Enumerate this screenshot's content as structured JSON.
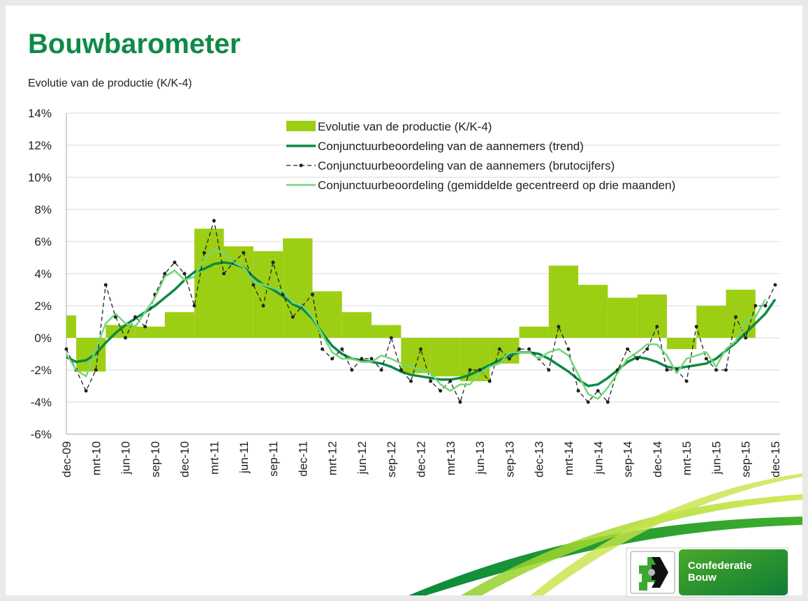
{
  "chart_data": {
    "type": "combo",
    "title": "Bouwbarometer",
    "subtitle": "Evolutie van de productie (K/K-4)",
    "categories": [
      "dec-09",
      null,
      null,
      "mrt-10",
      null,
      null,
      "jun-10",
      null,
      null,
      "sep-10",
      null,
      null,
      "dec-10",
      null,
      null,
      "mrt-11",
      null,
      null,
      "jun-11",
      null,
      null,
      "sep-11",
      null,
      null,
      "dec-11",
      null,
      null,
      "mrt-12",
      null,
      null,
      "jun-12",
      null,
      null,
      "sep-12",
      null,
      null,
      "dec-12",
      null,
      null,
      "mrt-13",
      null,
      null,
      "jun-13",
      null,
      null,
      "sep-13",
      null,
      null,
      "dec-13",
      null,
      null,
      "mrt-14",
      null,
      null,
      "jun-14",
      null,
      null,
      "sep-14",
      null,
      null,
      "dec-14",
      null,
      null,
      "mrt-15",
      null,
      null,
      "jun-15",
      null,
      null,
      "sep-15",
      null,
      null,
      "dec-15"
    ],
    "ylim": [
      -6,
      14
    ],
    "yticks": [
      {
        "value": -6,
        "label": "-6%"
      },
      {
        "value": -4,
        "label": "-4%"
      },
      {
        "value": -2,
        "label": "-2%"
      },
      {
        "value": 0,
        "label": "0%"
      },
      {
        "value": 2,
        "label": "2%"
      },
      {
        "value": 4,
        "label": "4%"
      },
      {
        "value": 6,
        "label": "6%"
      },
      {
        "value": 8,
        "label": "8%"
      },
      {
        "value": 10,
        "label": "10%"
      },
      {
        "value": 12,
        "label": "12%"
      },
      {
        "value": 14,
        "label": "14%"
      }
    ],
    "grid": true,
    "legend": "top",
    "series": [
      {
        "name": "Evolutie van de productie (K/K-4)",
        "type": "bar",
        "color": "#9ccf13",
        "values": [
          1.4,
          null,
          null,
          -2.1,
          null,
          null,
          0.8,
          null,
          null,
          0.7,
          null,
          null,
          1.6,
          null,
          null,
          6.8,
          null,
          null,
          5.7,
          null,
          null,
          5.4,
          null,
          null,
          6.2,
          null,
          null,
          2.9,
          null,
          null,
          1.6,
          null,
          null,
          0.8,
          null,
          null,
          -2.2,
          null,
          null,
          -2.4,
          null,
          null,
          -2.7,
          null,
          null,
          -1.6,
          null,
          null,
          0.7,
          null,
          null,
          4.5,
          null,
          null,
          3.3,
          null,
          null,
          2.5,
          null,
          null,
          2.7,
          null,
          null,
          -0.7,
          null,
          null,
          2.0,
          null,
          null,
          3.0,
          null,
          null,
          null
        ]
      },
      {
        "name": "Conjunctuurbeoordeling van de aannemers (trend)",
        "type": "line",
        "color": "#0c8a45",
        "width": 3.5,
        "values": [
          -1.2,
          -1.5,
          -1.4,
          -1.0,
          -0.3,
          0.3,
          0.8,
          1.2,
          1.6,
          2.0,
          2.5,
          3.0,
          3.6,
          4.1,
          4.3,
          4.6,
          4.7,
          4.6,
          4.4,
          3.8,
          3.3,
          3.0,
          2.6,
          2.1,
          1.8,
          1.2,
          0.3,
          -0.5,
          -1.0,
          -1.3,
          -1.4,
          -1.5,
          -1.6,
          -1.8,
          -2.1,
          -2.3,
          -2.4,
          -2.5,
          -2.6,
          -2.6,
          -2.5,
          -2.3,
          -2.0,
          -1.7,
          -1.4,
          -1.1,
          -0.9,
          -0.9,
          -1.0,
          -1.3,
          -1.7,
          -2.1,
          -2.6,
          -3.0,
          -2.9,
          -2.5,
          -2.0,
          -1.5,
          -1.2,
          -1.3,
          -1.5,
          -1.8,
          -1.9,
          -1.8,
          -1.7,
          -1.6,
          -1.3,
          -0.8,
          -0.3,
          0.3,
          0.9,
          1.5,
          2.4
        ]
      },
      {
        "name": "Conjunctuurbeoordeling van de aannemers (brutocijfers)",
        "type": "line",
        "color": "#222222",
        "width": 1.3,
        "dashed": true,
        "markers": true,
        "values": [
          -0.7,
          -2.0,
          -3.3,
          -2.0,
          3.3,
          1.3,
          0.0,
          1.3,
          0.7,
          2.7,
          4.0,
          4.7,
          4.0,
          2.0,
          5.3,
          7.3,
          4.0,
          4.7,
          5.3,
          3.3,
          2.0,
          4.7,
          2.7,
          1.3,
          2.0,
          2.7,
          -0.7,
          -1.3,
          -0.7,
          -2.0,
          -1.3,
          -1.3,
          -2.0,
          0.0,
          -2.0,
          -2.7,
          -0.7,
          -2.7,
          -3.3,
          -2.7,
          -4.0,
          -2.0,
          -2.0,
          -2.7,
          -0.7,
          -1.3,
          -0.7,
          -0.7,
          -1.3,
          -2.0,
          0.7,
          -0.7,
          -3.3,
          -4.0,
          -3.3,
          -4.0,
          -2.0,
          -0.7,
          -1.3,
          -0.7,
          0.7,
          -2.0,
          -2.0,
          -2.7,
          0.7,
          -1.3,
          -2.0,
          -2.0,
          1.3,
          0.0,
          2.0,
          2.0,
          3.3
        ]
      },
      {
        "name": "Conjunctuurbeoordeling (gemiddelde gecentreerd op drie maanden)",
        "type": "line",
        "color": "#74d67a",
        "width": 2.5,
        "values": [
          -1.0,
          -2.0,
          -2.4,
          -0.7,
          0.9,
          1.5,
          0.9,
          0.7,
          1.6,
          2.5,
          3.8,
          4.2,
          3.6,
          3.8,
          4.9,
          5.5,
          5.3,
          4.7,
          4.4,
          3.5,
          3.3,
          3.1,
          2.9,
          2.2,
          2.0,
          1.3,
          0.2,
          -0.9,
          -1.3,
          -1.3,
          -1.5,
          -1.5,
          -1.1,
          -1.3,
          -1.6,
          -1.8,
          -2.0,
          -2.2,
          -2.9,
          -3.3,
          -2.9,
          -2.9,
          -2.2,
          -1.8,
          -1.6,
          -0.9,
          -0.9,
          -0.9,
          -1.3,
          -0.9,
          -0.7,
          -1.1,
          -2.3,
          -3.5,
          -3.8,
          -3.1,
          -2.2,
          -1.3,
          -0.9,
          -0.4,
          -0.4,
          -1.1,
          -2.2,
          -1.3,
          -1.1,
          -0.9,
          -1.8,
          -0.7,
          -0.2,
          1.1,
          1.3,
          2.4,
          null
        ]
      }
    ]
  },
  "logo": {
    "lines": [
      "Confederatie",
      "Bouw"
    ]
  }
}
